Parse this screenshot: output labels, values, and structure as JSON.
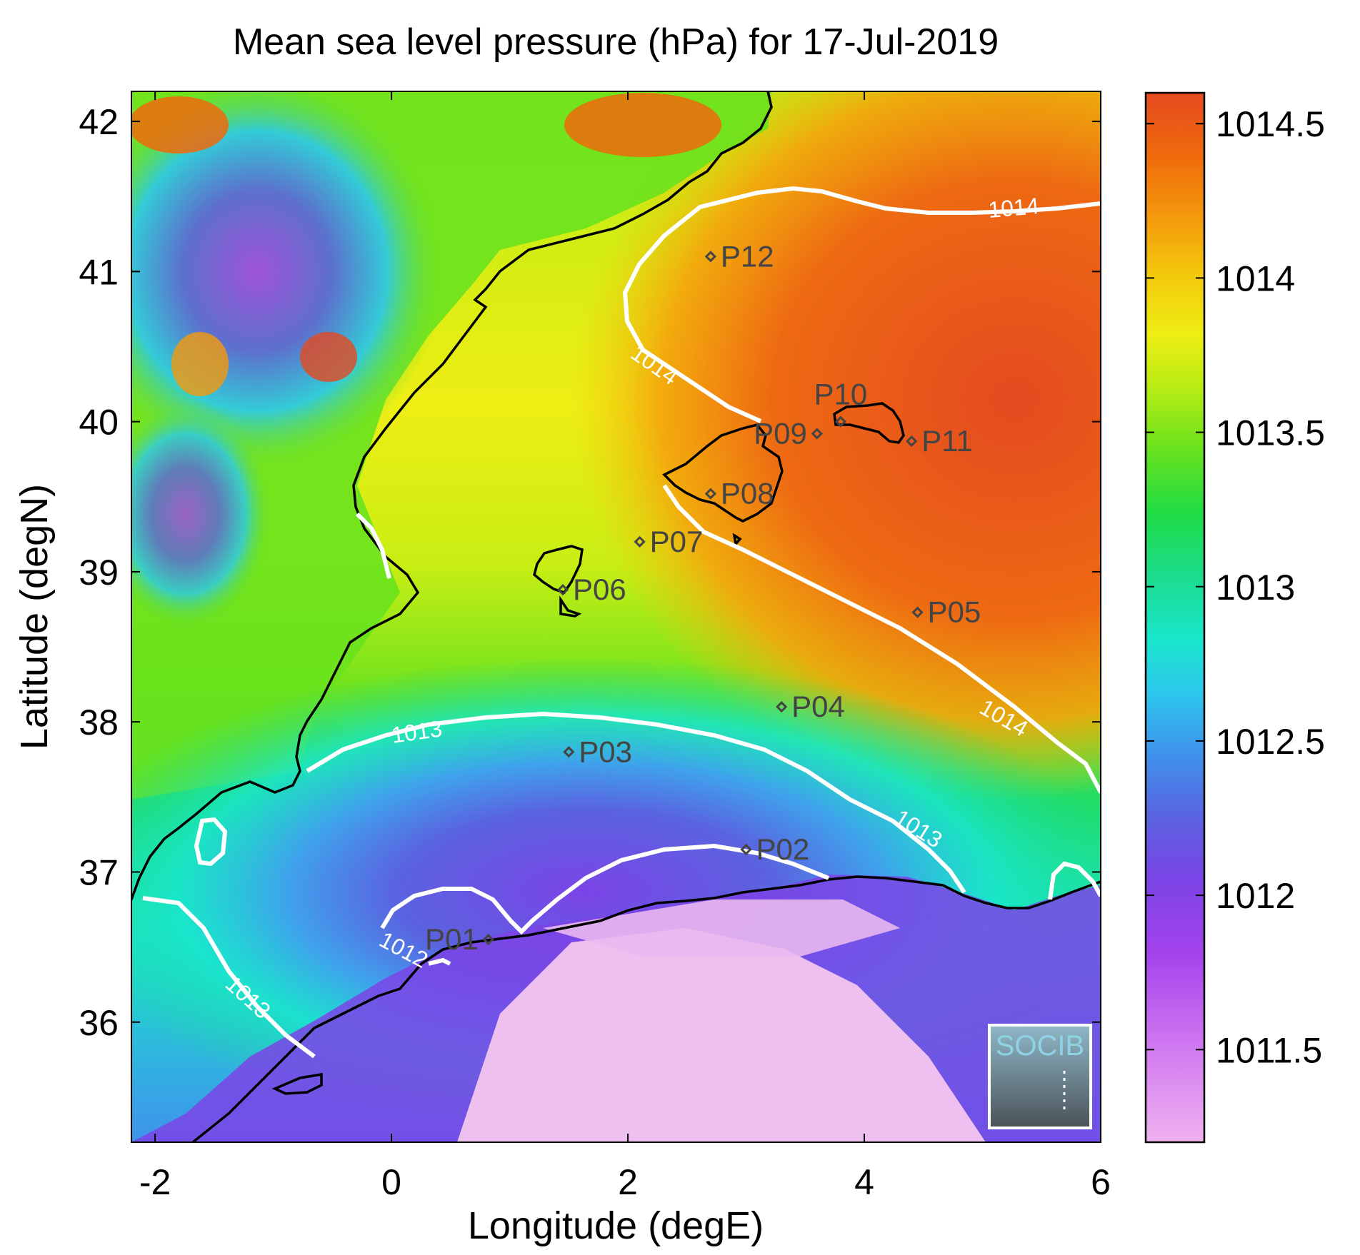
{
  "title": "Mean sea level pressure (hPa) for 17-Jul-2019",
  "xlabel": "Longitude (degE)",
  "ylabel": "Latitude (degN)",
  "xlim": [
    -2.2,
    6.0
  ],
  "ylim": [
    35.2,
    42.2
  ],
  "xticks": [
    "-2",
    "0",
    "2",
    "4",
    "6"
  ],
  "xtick_values": [
    -2,
    0,
    2,
    4,
    6
  ],
  "yticks": [
    "36",
    "37",
    "38",
    "39",
    "40",
    "41",
    "42"
  ],
  "ytick_values": [
    36,
    37,
    38,
    39,
    40,
    41,
    42
  ],
  "colorbar": {
    "range": [
      1011.2,
      1014.6
    ],
    "ticks": [
      "1011.5",
      "1012",
      "1012.5",
      "1013",
      "1013.5",
      "1014",
      "1014.5"
    ],
    "tick_values": [
      1011.5,
      1012,
      1012.5,
      1013,
      1013.5,
      1014,
      1014.5
    ],
    "colormap": [
      "#f0b3f0",
      "#d079f0",
      "#a443ec",
      "#7b44e6",
      "#5a63e0",
      "#3f93ec",
      "#2cc8ec",
      "#19e6cc",
      "#1cdc8c",
      "#1fdc44",
      "#69e21e",
      "#b9ec14",
      "#eeee14",
      "#f4c60c",
      "#f49a0c",
      "#f06a0c",
      "#e44a20"
    ]
  },
  "stations": [
    {
      "id": "P01",
      "lon": 0.82,
      "lat": 36.55
    },
    {
      "id": "P02",
      "lon": 3.0,
      "lat": 37.15
    },
    {
      "id": "P03",
      "lon": 1.5,
      "lat": 37.8
    },
    {
      "id": "P04",
      "lon": 3.3,
      "lat": 38.1
    },
    {
      "id": "P05",
      "lon": 4.45,
      "lat": 38.73
    },
    {
      "id": "P06",
      "lon": 1.45,
      "lat": 38.88
    },
    {
      "id": "P07",
      "lon": 2.1,
      "lat": 39.2
    },
    {
      "id": "P08",
      "lon": 2.7,
      "lat": 39.52
    },
    {
      "id": "P09",
      "lon": 3.6,
      "lat": 39.92
    },
    {
      "id": "P10",
      "lon": 3.8,
      "lat": 40.0
    },
    {
      "id": "P11",
      "lon": 4.4,
      "lat": 39.87
    },
    {
      "id": "P12",
      "lon": 2.7,
      "lat": 41.1
    }
  ],
  "contour_labels": [
    "1012",
    "1013",
    "1014"
  ],
  "logo_text": "SOCIB",
  "colors": {
    "contour": "#ffffff",
    "coast": "#000000",
    "station": "#444444"
  }
}
